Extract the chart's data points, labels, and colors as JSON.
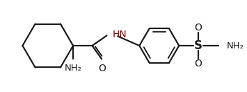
{
  "bg_color": "#ffffff",
  "line_color": "#1a1a1a",
  "line_width": 1.6,
  "text_color": "#1a1a1a",
  "hn_color": "#8b0000",
  "figsize": [
    3.55,
    1.33
  ],
  "dpi": 100,
  "xlim": [
    0,
    355
  ],
  "ylim": [
    0,
    133
  ]
}
